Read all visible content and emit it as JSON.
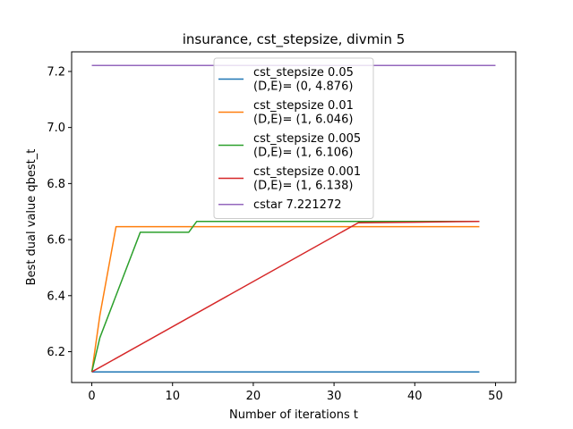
{
  "chart_data": {
    "type": "line",
    "title": "insurance, cst_stepsize, divmin 5",
    "xlabel": "Number of iterations t",
    "ylabel": "Best dual value qbest_t",
    "xlim": [
      -2.5,
      52.5
    ],
    "ylim": [
      6.09,
      7.27
    ],
    "xticks": [
      0,
      10,
      20,
      30,
      40,
      50
    ],
    "yticks": [
      6.2,
      6.4,
      6.6,
      6.8,
      7.0,
      7.2
    ],
    "xtick_labels": [
      "0",
      "10",
      "20",
      "30",
      "40",
      "50"
    ],
    "ytick_labels": [
      "6.2",
      "6.4",
      "6.6",
      "6.8",
      "7.0",
      "7.2"
    ],
    "legend_position": "top-center",
    "series": [
      {
        "name": "cst_stepsize 0.05\n(D,E)= (0, 4.876)",
        "color": "#1f77b4",
        "x": [
          0,
          48
        ],
        "y": [
          6.128,
          6.128
        ]
      },
      {
        "name": "cst_stepsize 0.01\n(D,E)= (1, 6.046)",
        "color": "#ff7f0e",
        "x": [
          0,
          1,
          3,
          48
        ],
        "y": [
          6.128,
          6.33,
          6.646,
          6.646
        ]
      },
      {
        "name": "cst_stepsize 0.005\n(D,E)= (1, 6.106)",
        "color": "#2ca02c",
        "x": [
          0,
          1,
          6,
          12,
          13,
          48
        ],
        "y": [
          6.128,
          6.25,
          6.626,
          6.626,
          6.665,
          6.665
        ]
      },
      {
        "name": "cst_stepsize 0.001\n(D,E)= (1, 6.138)",
        "color": "#d62728",
        "x": [
          0,
          33,
          40,
          48
        ],
        "y": [
          6.128,
          6.66,
          6.662,
          6.665
        ]
      },
      {
        "name": "cstar 7.221272",
        "color": "#9467bd",
        "x": [
          0,
          50
        ],
        "y": [
          7.2213,
          7.2213
        ]
      }
    ]
  }
}
